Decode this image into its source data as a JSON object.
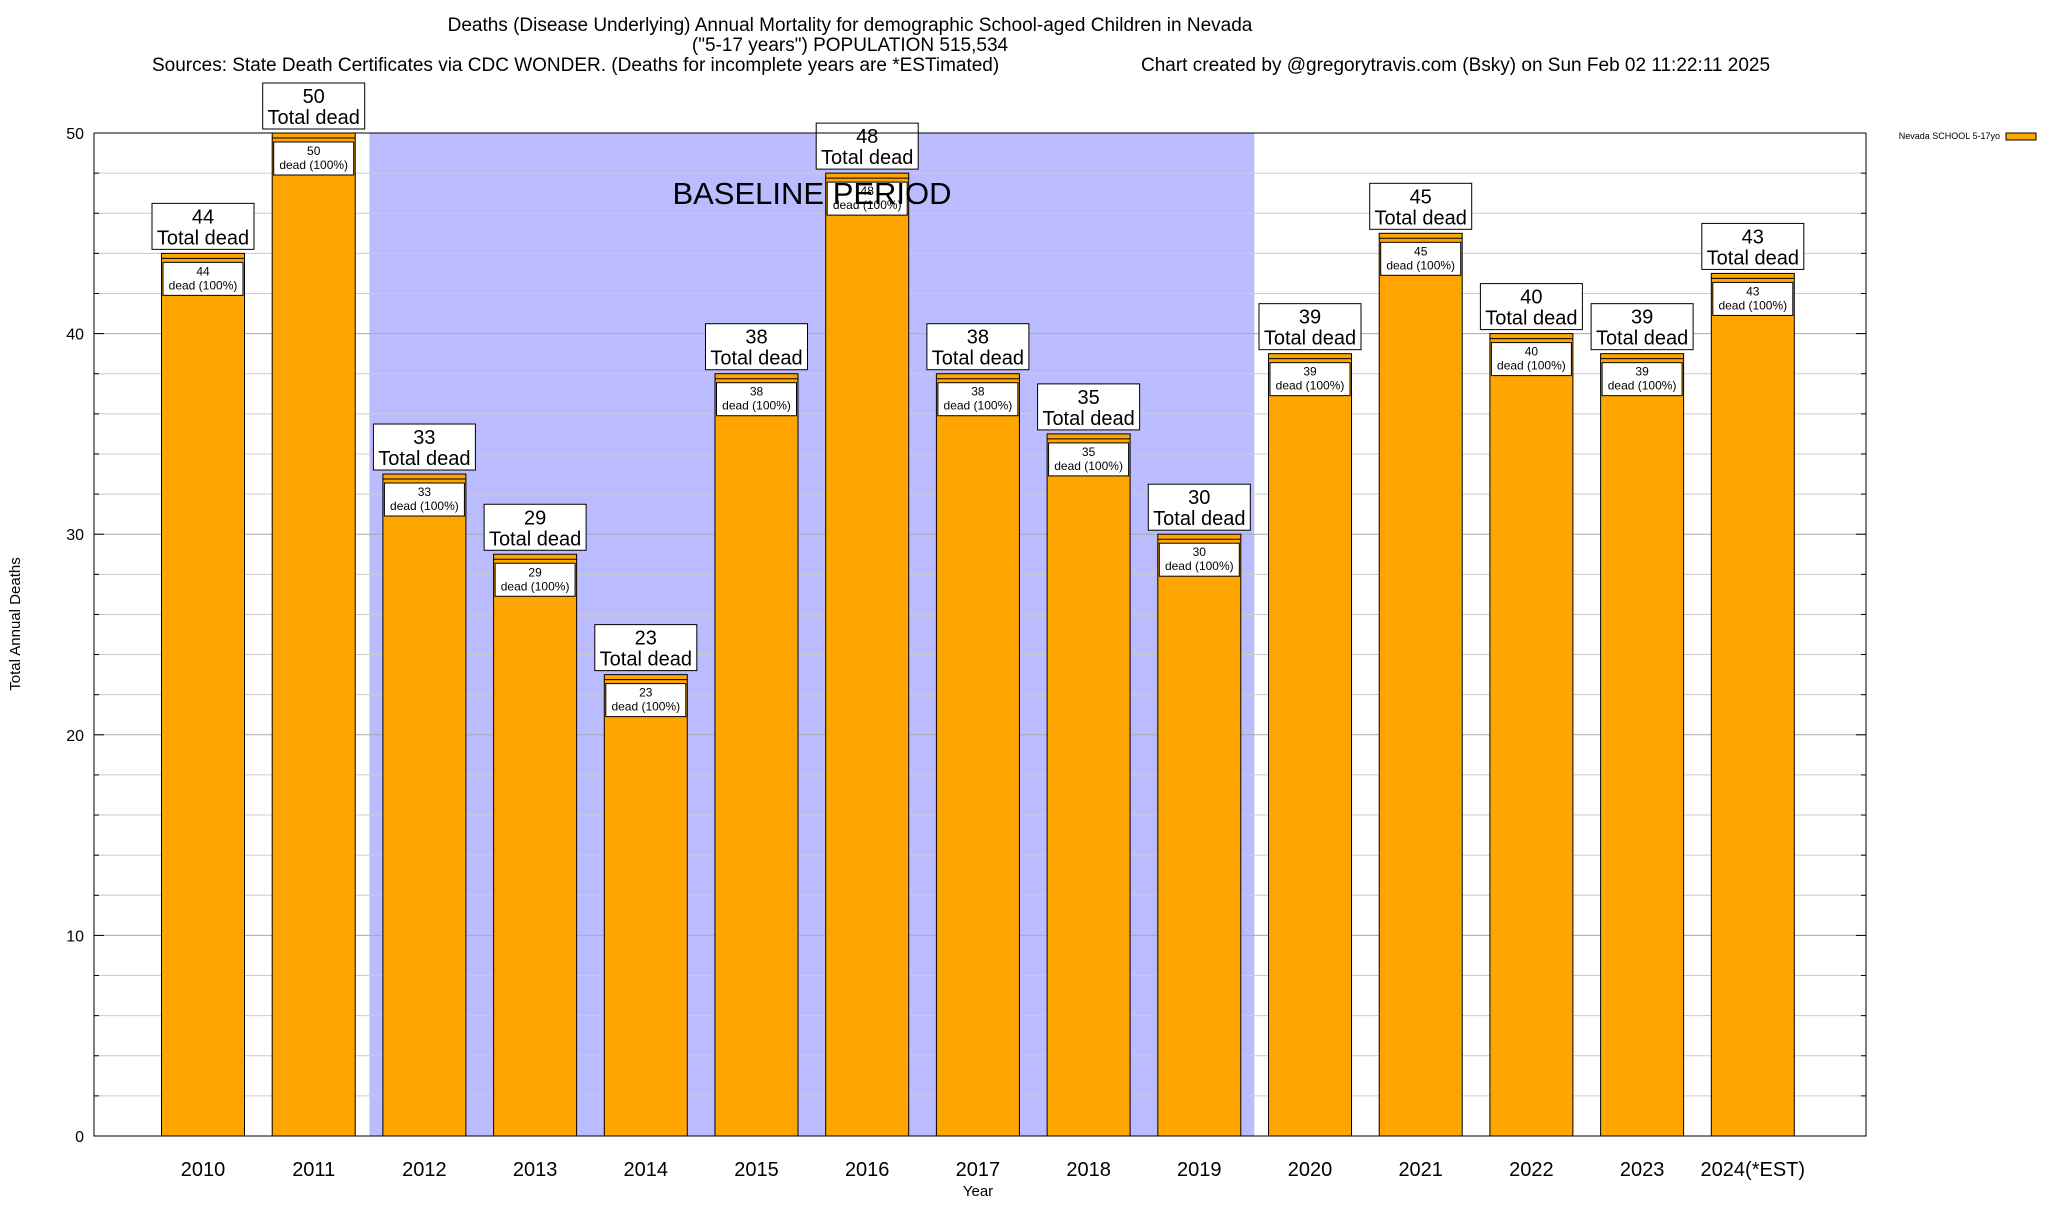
{
  "chart_data": {
    "type": "bar",
    "title_line1": "Deaths (Disease Underlying) Annual Mortality for demographic School-aged Children in Nevada",
    "title_line2": "(\"5-17 years\") POPULATION 515,534",
    "sources": "Sources: State Death Certificates via CDC WONDER. (Deaths for incomplete years are *ESTimated)",
    "credit": "Chart created by @gregorytravis.com (Bsky) on Sun Feb 02 11:22:11 2025",
    "xlabel": "Year",
    "ylabel": "Total Annual Deaths",
    "ylim": [
      0,
      50
    ],
    "y_major_ticks": [
      0,
      10,
      20,
      30,
      40,
      50
    ],
    "y_minor_step": 2,
    "grid": true,
    "categories": [
      "2010",
      "2011",
      "2012",
      "2013",
      "2014",
      "2015",
      "2016",
      "2017",
      "2018",
      "2019",
      "2020",
      "2021",
      "2022",
      "2023",
      "2024(*EST)"
    ],
    "series": [
      {
        "name": "Nevada SCHOOL 5-17yo",
        "color": "#FFA500",
        "values": [
          44,
          50,
          33,
          29,
          23,
          38,
          48,
          38,
          35,
          30,
          39,
          45,
          40,
          39,
          43
        ]
      }
    ],
    "total_label_suffix": "Total dead",
    "inner_label_suffix": "dead (100%)",
    "baseline": {
      "label": "BASELINE PERIOD",
      "from": "2012",
      "to": "2019",
      "color": "#BBBBFF"
    },
    "legend": {
      "position": "top-right",
      "entries": [
        "Nevada SCHOOL 5-17yo"
      ]
    }
  }
}
